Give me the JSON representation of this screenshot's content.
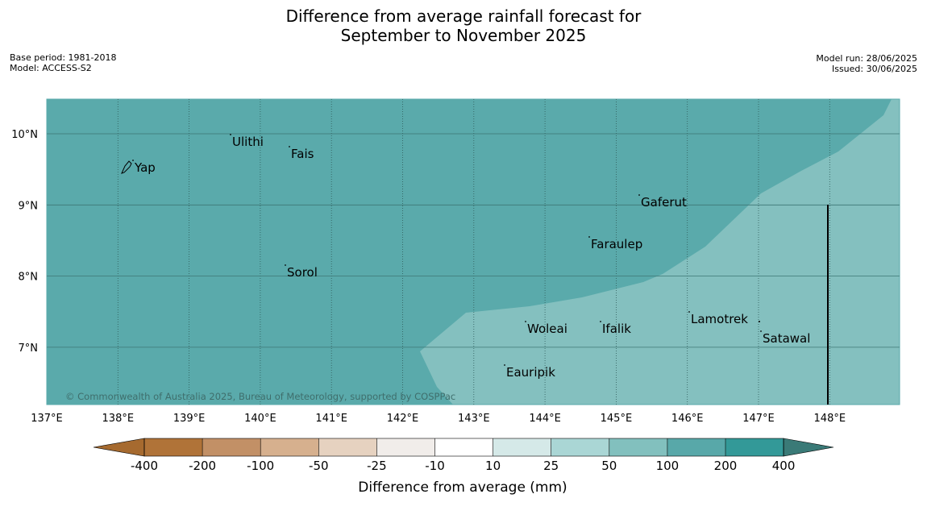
{
  "title": {
    "line1": "Difference from average rainfall forecast for",
    "line2": "September to November 2025"
  },
  "meta": {
    "base_period": "Base period: 1981-2018",
    "model": "Model: ACCESS-S2",
    "model_run": "Model run: 28/06/2025",
    "issued": "Issued: 30/06/2025"
  },
  "map": {
    "lon_labels": [
      "137°E",
      "138°E",
      "139°E",
      "140°E",
      "141°E",
      "142°E",
      "143°E",
      "144°E",
      "145°E",
      "146°E",
      "147°E",
      "148°E"
    ],
    "lat_labels": [
      "10°N",
      "9°N",
      "8°N",
      "7°N"
    ],
    "places": [
      {
        "name": "Yap"
      },
      {
        "name": "Ulithi"
      },
      {
        "name": "Fais"
      },
      {
        "name": "Gaferut"
      },
      {
        "name": "Faraulep"
      },
      {
        "name": "Sorol"
      },
      {
        "name": "Lamotrek"
      },
      {
        "name": "Woleai"
      },
      {
        "name": "Ifalik"
      },
      {
        "name": "Satawal"
      },
      {
        "name": "Eauripik"
      }
    ],
    "copyright": "© Commonwealth of Australia 2025, Bureau of Meteorology, supported by COSPPac",
    "region_colors": {
      "dark_category": "#5aaaab",
      "light_category": "#84c0bf"
    }
  },
  "legend": {
    "title": "Difference from average (mm)",
    "ticks": [
      "-400",
      "-200",
      "-100",
      "-50",
      "-25",
      "-10",
      "10",
      "25",
      "50",
      "100",
      "200",
      "400"
    ],
    "colors": [
      "#a66a2f",
      "#b07338",
      "#c29066",
      "#d6b08e",
      "#e6d2c0",
      "#f1edea",
      "#ffffff",
      "#d5e9e8",
      "#aad6d5",
      "#82c0be",
      "#58a8a9",
      "#339998",
      "#3a7a77"
    ]
  }
}
